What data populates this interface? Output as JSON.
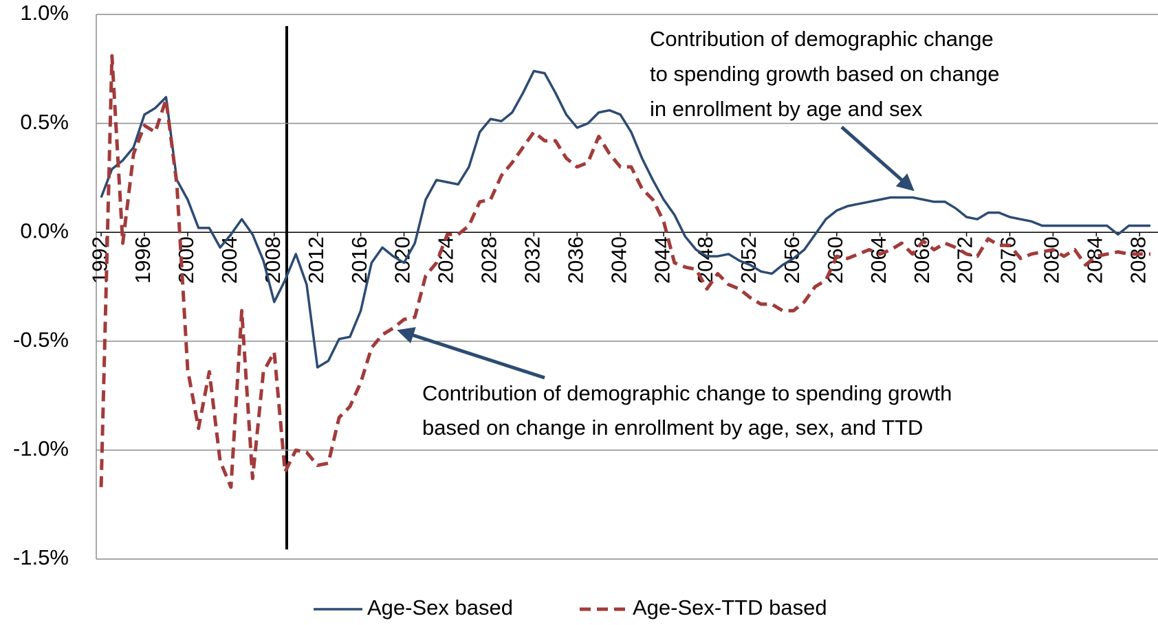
{
  "chart_data": {
    "type": "line",
    "x": [
      1992,
      1993,
      1994,
      1995,
      1996,
      1997,
      1998,
      1999,
      2000,
      2001,
      2002,
      2003,
      2004,
      2005,
      2006,
      2007,
      2008,
      2009,
      2010,
      2011,
      2012,
      2013,
      2014,
      2015,
      2016,
      2017,
      2018,
      2019,
      2020,
      2021,
      2022,
      2023,
      2024,
      2025,
      2026,
      2027,
      2028,
      2029,
      2030,
      2031,
      2032,
      2033,
      2034,
      2035,
      2036,
      2037,
      2038,
      2039,
      2040,
      2041,
      2042,
      2043,
      2044,
      2045,
      2046,
      2047,
      2048,
      2049,
      2050,
      2051,
      2052,
      2053,
      2054,
      2055,
      2056,
      2057,
      2058,
      2059,
      2060,
      2061,
      2062,
      2063,
      2064,
      2065,
      2066,
      2067,
      2068,
      2069,
      2070,
      2071,
      2072,
      2073,
      2074,
      2075,
      2076,
      2077,
      2078,
      2079,
      2080,
      2081,
      2082,
      2083,
      2084,
      2085,
      2086,
      2087,
      2088,
      2089
    ],
    "series": [
      {
        "name": "Age-Sex based",
        "color": "#2d4b72",
        "dash": false,
        "values": [
          0.16,
          0.29,
          0.33,
          0.39,
          0.54,
          0.57,
          0.62,
          0.24,
          0.15,
          0.02,
          0.02,
          -0.07,
          -0.01,
          0.06,
          -0.01,
          -0.13,
          -0.32,
          -0.22,
          -0.1,
          -0.24,
          -0.62,
          -0.59,
          -0.49,
          -0.48,
          -0.36,
          -0.14,
          -0.07,
          -0.11,
          -0.14,
          -0.05,
          0.15,
          0.24,
          0.23,
          0.22,
          0.3,
          0.46,
          0.52,
          0.51,
          0.55,
          0.64,
          0.74,
          0.73,
          0.64,
          0.54,
          0.48,
          0.5,
          0.55,
          0.56,
          0.54,
          0.46,
          0.34,
          0.24,
          0.15,
          0.08,
          -0.02,
          -0.08,
          -0.11,
          -0.11,
          -0.1,
          -0.13,
          -0.15,
          -0.18,
          -0.19,
          -0.15,
          -0.12,
          -0.08,
          -0.01,
          0.06,
          0.1,
          0.12,
          0.13,
          0.14,
          0.15,
          0.16,
          0.16,
          0.16,
          0.15,
          0.14,
          0.14,
          0.11,
          0.07,
          0.06,
          0.09,
          0.09,
          0.07,
          0.06,
          0.05,
          0.03,
          0.03,
          0.03,
          0.03,
          0.03,
          0.03,
          0.03,
          -0.01,
          0.03,
          0.03,
          0.03
        ]
      },
      {
        "name": "Age-Sex-TTD based",
        "color": "#a23b3b",
        "dash": true,
        "values": [
          -1.17,
          0.81,
          -0.05,
          0.36,
          0.49,
          0.46,
          0.61,
          0.22,
          -0.63,
          -0.9,
          -0.64,
          -1.05,
          -1.17,
          -0.36,
          -1.13,
          -0.64,
          -0.55,
          -1.1,
          -1.0,
          -1.01,
          -1.07,
          -1.06,
          -0.85,
          -0.8,
          -0.69,
          -0.53,
          -0.47,
          -0.44,
          -0.4,
          -0.39,
          -0.2,
          -0.14,
          -0.01,
          -0.01,
          0.03,
          0.14,
          0.15,
          0.26,
          0.32,
          0.39,
          0.46,
          0.42,
          0.42,
          0.34,
          0.3,
          0.32,
          0.44,
          0.36,
          0.3,
          0.3,
          0.2,
          0.15,
          0.05,
          -0.14,
          -0.16,
          -0.17,
          -0.26,
          -0.19,
          -0.24,
          -0.26,
          -0.3,
          -0.33,
          -0.33,
          -0.36,
          -0.36,
          -0.32,
          -0.25,
          -0.22,
          -0.11,
          -0.12,
          -0.1,
          -0.08,
          -0.1,
          -0.08,
          -0.05,
          -0.1,
          -0.04,
          -0.08,
          -0.05,
          -0.07,
          -0.1,
          -0.11,
          -0.03,
          -0.06,
          -0.06,
          -0.12,
          -0.1,
          -0.09,
          -0.08,
          -0.11,
          -0.08,
          -0.15,
          -0.11,
          -0.1,
          -0.09,
          -0.1,
          -0.1,
          -0.1
        ]
      }
    ],
    "xlim": [
      1991.55,
      2089.7
    ],
    "xticks": [
      1992,
      1996,
      2000,
      2004,
      2008,
      2012,
      2016,
      2020,
      2024,
      2028,
      2032,
      2036,
      2040,
      2044,
      2048,
      2052,
      2056,
      2060,
      2064,
      2068,
      2072,
      2076,
      2080,
      2084,
      2088
    ],
    "ylim": [
      -1.5,
      1.0
    ],
    "yticks": [
      {
        "value": -1.5,
        "label": "-1.5%"
      },
      {
        "value": -1.0,
        "label": "-1.0%"
      },
      {
        "value": -0.5,
        "label": "-0.5%"
      },
      {
        "value": 0,
        "label": "0.0%"
      },
      {
        "value": 0.5,
        "label": "0.5%"
      },
      {
        "value": 1.0,
        "label": "1.0%"
      }
    ],
    "grid": true,
    "legend": "bottom",
    "annotations": [
      {
        "lines": [
          "Contribution of demographic change",
          "to spending growth based on change",
          "in enrollment by age and sex"
        ]
      },
      {
        "lines": [
          "Contribution of demographic change to spending growth",
          "based on change in enrollment by age, sex, and TTD"
        ]
      }
    ]
  }
}
